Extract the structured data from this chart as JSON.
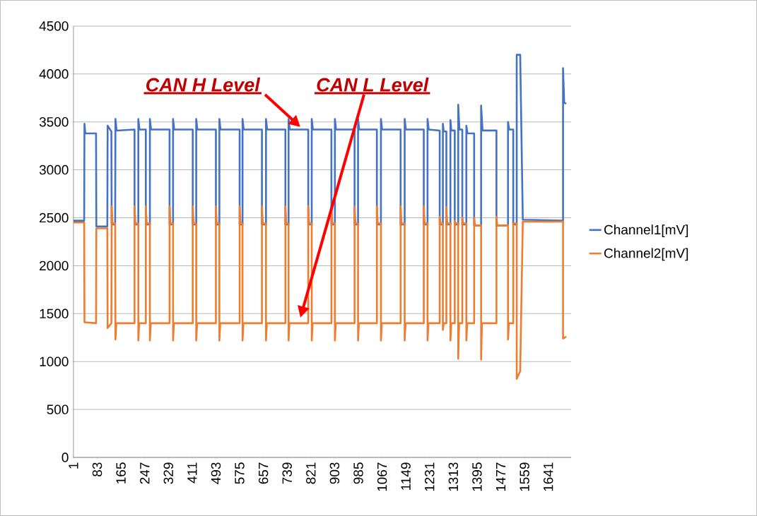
{
  "chart_data": {
    "type": "line",
    "xlim": [
      1,
      1720
    ],
    "xticks": [
      1,
      83,
      165,
      247,
      329,
      411,
      493,
      575,
      657,
      739,
      821,
      903,
      985,
      1067,
      1149,
      1231,
      1313,
      1395,
      1477,
      1559,
      1641
    ],
    "ylim": [
      0,
      4500
    ],
    "yticks": [
      0,
      500,
      1000,
      1500,
      2000,
      2500,
      3000,
      3500,
      4000,
      4500
    ],
    "grid": "y",
    "legend": "right",
    "series": [
      {
        "name": "Channel1[mV]",
        "color": "#4472c4",
        "x": [
          1,
          38,
          39,
          42,
          79,
          80,
          118,
          119,
          132,
          133,
          145,
          146,
          150,
          212,
          212,
          225,
          225,
          229,
          251,
          251,
          265,
          265,
          269,
          333,
          333,
          345,
          345,
          349,
          413,
          413,
          425,
          425,
          429,
          493,
          493,
          505,
          505,
          509,
          575,
          575,
          585,
          585,
          589,
          652,
          652,
          666,
          666,
          670,
          733,
          733,
          744,
          744,
          748,
          812,
          812,
          824,
          824,
          828,
          892,
          892,
          904,
          904,
          908,
          972,
          972,
          984,
          984,
          988,
          1049,
          1049,
          1063,
          1063,
          1067,
          1131,
          1131,
          1145,
          1145,
          1149,
          1211,
          1211,
          1224,
          1224,
          1228,
          1266,
          1266,
          1277,
          1277,
          1280,
          1289,
          1289,
          1303,
          1303,
          1306,
          1318,
          1318,
          1330,
          1330,
          1334,
          1344,
          1344,
          1358,
          1358,
          1362,
          1385,
          1385,
          1409,
          1409,
          1414,
          1462,
          1462,
          1502,
          1502,
          1506,
          1520,
          1520,
          1532,
          1532,
          1544,
          1553,
          1692,
          1692,
          1696,
          1703
        ],
        "values": [
          2470,
          2470,
          3480,
          3380,
          3380,
          2410,
          2410,
          3460,
          3400,
          2430,
          2430,
          3530,
          3410,
          3420,
          2430,
          2430,
          3530,
          3420,
          3420,
          2430,
          2430,
          3530,
          3420,
          3420,
          2430,
          2430,
          3530,
          3420,
          3420,
          2430,
          2430,
          3530,
          3420,
          3420,
          2430,
          2430,
          3530,
          3420,
          3420,
          2430,
          2430,
          3530,
          3420,
          3420,
          2430,
          2430,
          3530,
          3420,
          3420,
          2430,
          2430,
          3530,
          3420,
          3420,
          2430,
          2430,
          3530,
          3420,
          3420,
          2430,
          2430,
          3530,
          3420,
          3420,
          2430,
          2430,
          3530,
          3420,
          3420,
          2430,
          2430,
          3530,
          3420,
          3420,
          2430,
          2430,
          3530,
          3420,
          3420,
          2430,
          2430,
          3530,
          3420,
          3410,
          2430,
          2430,
          3480,
          3400,
          3400,
          2430,
          2430,
          3520,
          3410,
          3410,
          2430,
          2430,
          3680,
          3420,
          3420,
          2430,
          2430,
          3460,
          3380,
          3380,
          2420,
          2420,
          3670,
          3410,
          3410,
          2420,
          2420,
          3500,
          3420,
          3420,
          2430,
          2430,
          4200,
          4200,
          2480,
          2470,
          4060,
          3700,
          3690
        ]
      },
      {
        "name": "Channel2[mV]",
        "color": "#ed7d31",
        "x": [
          1,
          38,
          39,
          79,
          80,
          118,
          119,
          132,
          133,
          136,
          145,
          146,
          149,
          212,
          212,
          215,
          225,
          225,
          228,
          251,
          251,
          254,
          265,
          265,
          268,
          333,
          333,
          336,
          345,
          345,
          348,
          413,
          413,
          416,
          425,
          425,
          428,
          493,
          493,
          496,
          505,
          505,
          508,
          575,
          575,
          578,
          585,
          585,
          588,
          652,
          652,
          655,
          666,
          666,
          669,
          733,
          733,
          736,
          744,
          744,
          747,
          812,
          812,
          815,
          824,
          824,
          827,
          892,
          892,
          895,
          904,
          904,
          907,
          972,
          972,
          975,
          984,
          984,
          987,
          1049,
          1049,
          1052,
          1063,
          1063,
          1066,
          1131,
          1131,
          1134,
          1145,
          1145,
          1148,
          1211,
          1211,
          1214,
          1224,
          1224,
          1227,
          1266,
          1266,
          1269,
          1277,
          1277,
          1280,
          1289,
          1289,
          1292,
          1303,
          1303,
          1306,
          1318,
          1318,
          1321,
          1330,
          1330,
          1333,
          1344,
          1344,
          1347,
          1358,
          1358,
          1361,
          1385,
          1385,
          1388,
          1409,
          1409,
          1412,
          1462,
          1462,
          1465,
          1502,
          1502,
          1505,
          1520,
          1520,
          1532,
          1532,
          1544,
          1553,
          1692,
          1692,
          1703
        ],
        "values": [
          2450,
          2450,
          1410,
          1400,
          2390,
          2390,
          1350,
          1400,
          2620,
          2440,
          2440,
          1230,
          1400,
          1400,
          2620,
          2440,
          2440,
          1220,
          1400,
          1400,
          2620,
          2440,
          2440,
          1220,
          1400,
          1400,
          2620,
          2440,
          2440,
          1220,
          1400,
          1400,
          2620,
          2440,
          2440,
          1220,
          1400,
          1400,
          2620,
          2440,
          2440,
          1220,
          1400,
          1400,
          2620,
          2440,
          2440,
          1220,
          1400,
          1400,
          2620,
          2440,
          2440,
          1220,
          1400,
          1400,
          2620,
          2440,
          2440,
          1220,
          1400,
          1400,
          2620,
          2440,
          2440,
          1220,
          1400,
          1400,
          2620,
          2440,
          2440,
          1220,
          1400,
          1400,
          2620,
          2440,
          2440,
          1220,
          1400,
          1400,
          2620,
          2440,
          2440,
          1220,
          1400,
          1400,
          2620,
          2440,
          2440,
          1220,
          1400,
          1400,
          2620,
          2440,
          2440,
          1220,
          1400,
          1400,
          2510,
          2440,
          2440,
          1330,
          1400,
          1400,
          2610,
          2440,
          2440,
          1220,
          1400,
          1400,
          2470,
          2440,
          2440,
          1030,
          1400,
          1400,
          2500,
          2440,
          2440,
          1220,
          1400,
          1400,
          2500,
          2420,
          2420,
          1020,
          1400,
          1400,
          2510,
          2420,
          2420,
          1230,
          1400,
          1400,
          2440,
          2440,
          820,
          900,
          2460,
          2460,
          1240,
          1260
        ]
      }
    ],
    "annotations": [
      "CAN  H Level",
      "CAN  L Level"
    ]
  }
}
